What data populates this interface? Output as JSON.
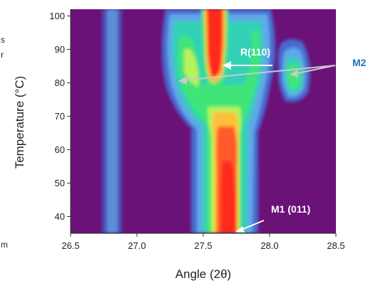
{
  "chart_data": {
    "type": "heatmap",
    "title": "",
    "xlabel": "Angle (2θ)",
    "ylabel": "Temperature (°C)",
    "xlim": [
      26.5,
      28.5
    ],
    "ylim": [
      35,
      102
    ],
    "x_ticks": [
      "26.5",
      "27.0",
      "27.5",
      "28.0",
      "28.5"
    ],
    "y_ticks": [
      "40",
      "50",
      "60",
      "70",
      "80",
      "90",
      "100"
    ],
    "grid": false,
    "colors": {
      "background": "#6a1278",
      "levels": [
        "#4a6bd0",
        "#5fa9e8",
        "#33d1b5",
        "#3fe57a",
        "#b8f25a",
        "#ffbf3a",
        "#ff5a2a",
        "#ff2a1a"
      ]
    },
    "peaks": [
      {
        "label": "weak band",
        "x": 26.85,
        "width": 0.05,
        "from_temp": 35,
        "to_temp": 102
      },
      {
        "label": "R(110)",
        "x": 27.6,
        "width": 0.05,
        "from_temp": 78,
        "to_temp": 102
      },
      {
        "label": "M1 (011)",
        "x": 27.7,
        "width": 0.1,
        "from_temp": 35,
        "to_temp": 72
      },
      {
        "label": "M2",
        "x": 27.33,
        "width": 0.08,
        "from_temp": 72,
        "to_temp": 92
      },
      {
        "label": "M2",
        "x": 28.24,
        "width": 0.06,
        "from_temp": 76,
        "to_temp": 88
      }
    ],
    "annotations": [
      {
        "text": "R(110)",
        "x": 27.76,
        "y": 94
      },
      {
        "text": "M1 (011)",
        "x": 28.15,
        "y": 38
      },
      {
        "text": "M2",
        "x": 28.65,
        "y": 86
      }
    ]
  },
  "edge_text": {
    "left_fragments": [
      "s",
      "r",
      "m"
    ]
  }
}
